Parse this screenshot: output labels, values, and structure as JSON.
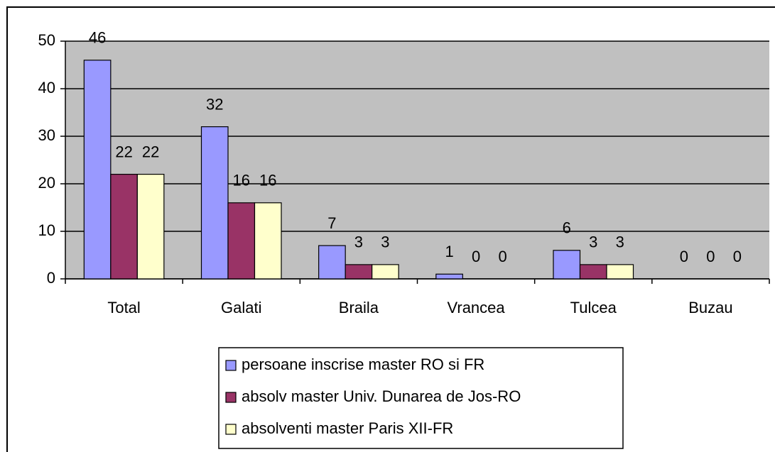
{
  "chart_data": {
    "type": "bar",
    "categories": [
      "Total",
      "Galati",
      "Braila",
      "Vrancea",
      "Tulcea",
      "Buzau"
    ],
    "series": [
      {
        "name": "persoane inscrise master RO si FR",
        "color": "#9999ff",
        "values": [
          46,
          32,
          7,
          1,
          6,
          0
        ]
      },
      {
        "name": "absolv master Univ. Dunarea de Jos-RO",
        "color": "#993366",
        "values": [
          22,
          16,
          3,
          0,
          3,
          0
        ]
      },
      {
        "name": "absolventi master Paris XII-FR",
        "color": "#ffffcc",
        "values": [
          22,
          16,
          3,
          0,
          3,
          0
        ]
      }
    ],
    "ylim": [
      0,
      50
    ],
    "yticks": [
      0,
      10,
      20,
      30,
      40,
      50
    ],
    "grid": true,
    "legend": "bottom"
  }
}
